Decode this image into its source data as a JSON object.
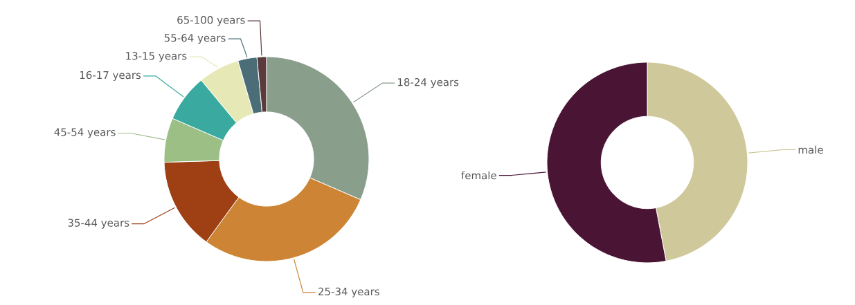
{
  "chart_data": [
    {
      "type": "donut",
      "categories": [
        "18-24 years",
        "25-34 years",
        "35-44 years",
        "45-54 years",
        "16-17 years",
        "13-15 years",
        "55-64 years",
        "65-100 years"
      ],
      "values": [
        31.5,
        28.5,
        14.5,
        7,
        7.5,
        6.5,
        3,
        1.5
      ],
      "colors": [
        "#8a9e8c",
        "#cd8434",
        "#9e3f14",
        "#9cbf86",
        "#3aa9a0",
        "#e6e9b5",
        "#4a6d78",
        "#5a3a3a"
      ]
    },
    {
      "type": "donut",
      "categories": [
        "male",
        "female"
      ],
      "values": [
        47,
        53
      ],
      "colors": [
        "#cfc89a",
        "#4a1434"
      ]
    }
  ]
}
